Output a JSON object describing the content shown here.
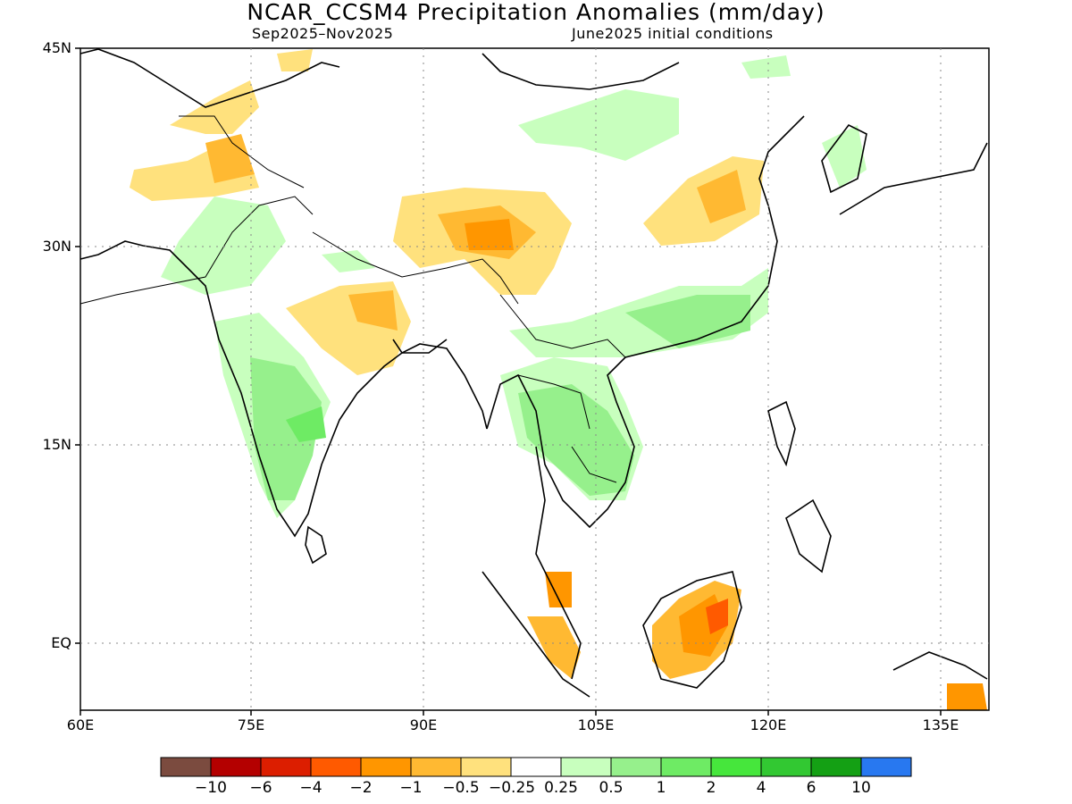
{
  "title": "NCAR_CCSM4 Precipitation Anomalies (mm/day)",
  "subtitle_left": "Sep2025–Nov2025",
  "subtitle_right": "June2025 initial conditions",
  "lat_labels": [
    "45N",
    "30N",
    "15N",
    "EQ"
  ],
  "lon_labels": [
    "60E",
    "75E",
    "90E",
    "105E",
    "120E",
    "135E"
  ],
  "colors": {
    "bins": [
      "#7b4b3f",
      "#b40000",
      "#dc1e00",
      "#ff5a00",
      "#ff9600",
      "#ffb932",
      "#ffe17d",
      "#ffffff",
      "#c8ffbe",
      "#96f08c",
      "#6eeb64",
      "#46e63c",
      "#32c832",
      "#14a014",
      "#2878f0"
    ]
  },
  "colorbar_labels": [
    "−10",
    "−6",
    "−4",
    "−2",
    "−1",
    "−0.5",
    "−0.25",
    "0.25",
    "0.5",
    "1",
    "2",
    "4",
    "6",
    "10"
  ]
}
